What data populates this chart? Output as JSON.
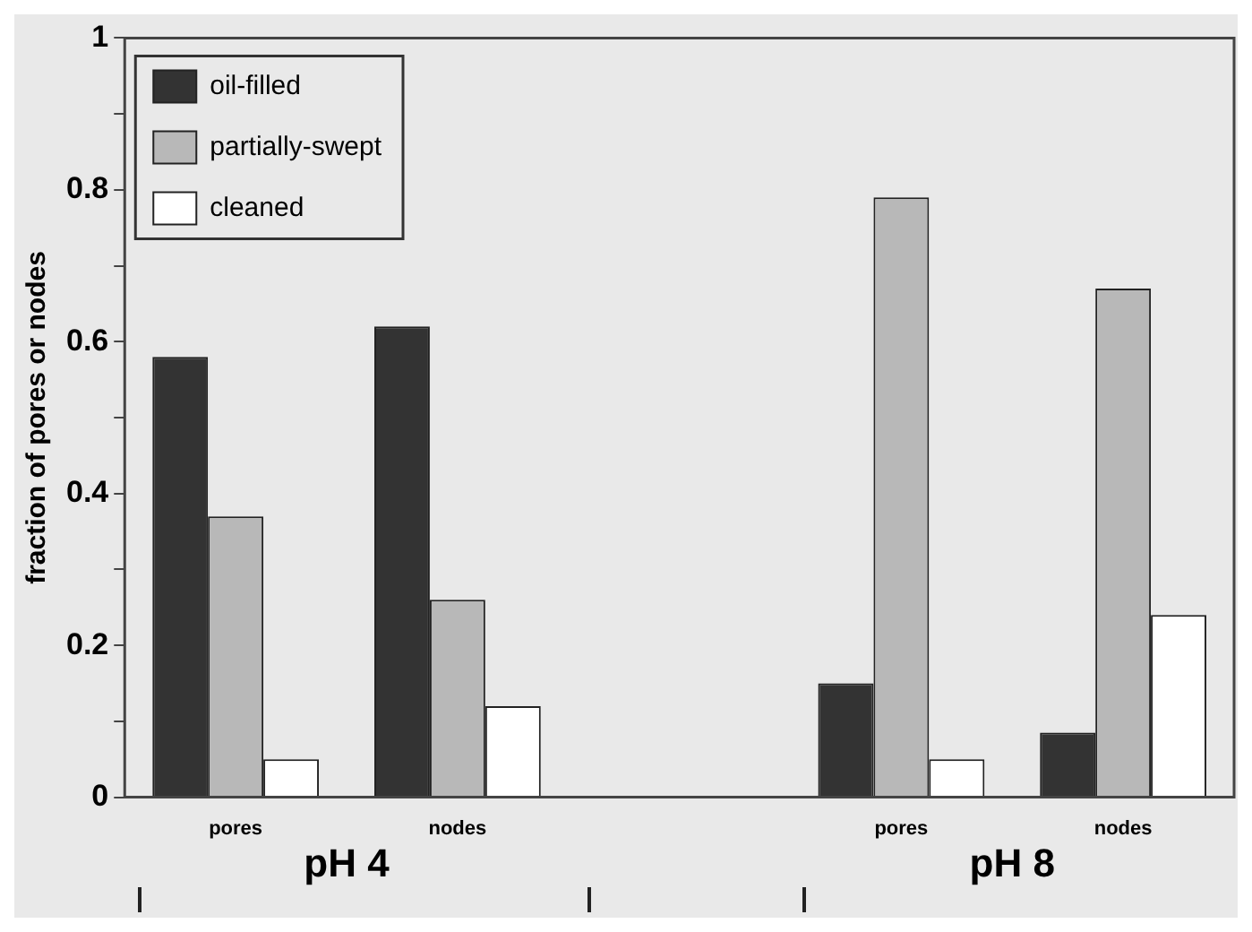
{
  "chart_data": {
    "type": "bar",
    "ylabel": "fraction of pores or nodes",
    "categories": [
      "pores",
      "nodes",
      null,
      "pores",
      "nodes"
    ],
    "series": [
      {
        "name": "oil-filled",
        "color": "#333333",
        "values": [
          0.58,
          0.62,
          null,
          0.15,
          0.085
        ]
      },
      {
        "name": "partially-swept",
        "color": "#b8b8b8",
        "values": [
          0.37,
          0.26,
          null,
          0.79,
          0.67
        ]
      },
      {
        "name": "cleaned",
        "color": "#ffffff",
        "values": [
          0.05,
          0.12,
          null,
          0.05,
          0.24
        ]
      }
    ],
    "ylim": [
      0,
      1
    ],
    "yticks": [
      0,
      {
        "value": 0.1,
        "label": null
      },
      0.2,
      {
        "value": 0.3,
        "label": null
      },
      0.4,
      {
        "value": 0.5,
        "label": null
      },
      0.6,
      {
        "value": 0.7,
        "label": null
      },
      0.8,
      {
        "value": 0.9,
        "label": null
      },
      1
    ],
    "annotations": [
      "pH 4",
      "pH 8"
    ],
    "legend": "top left",
    "grid": false
  }
}
